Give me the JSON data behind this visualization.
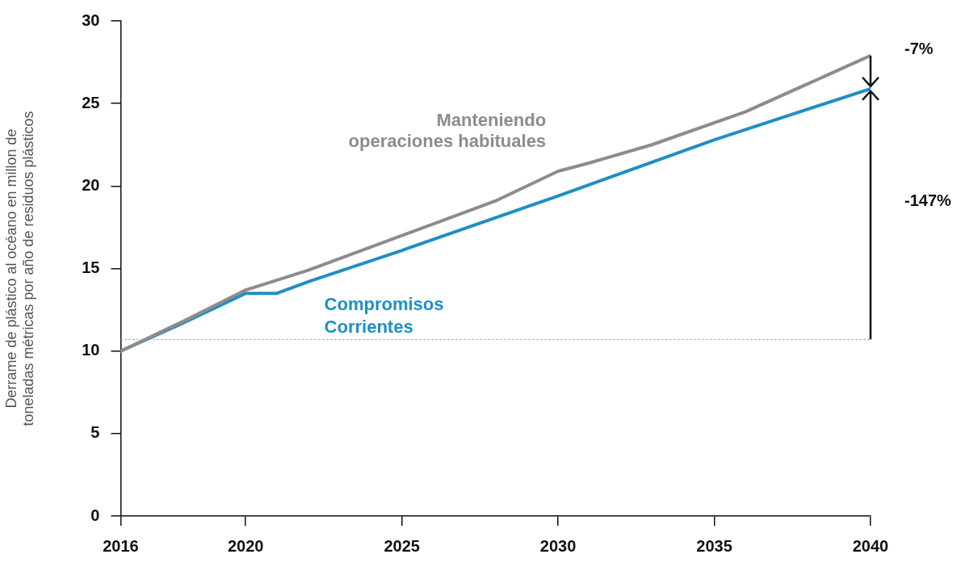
{
  "chart_data": {
    "type": "line",
    "ylabel": "Derrame de plástico al océano en millon de toneladas métricas por año de residuos plásticos",
    "xlim": [
      2016,
      2040
    ],
    "xticks": [
      2016,
      2020,
      2025,
      2030,
      2035,
      2040
    ],
    "ylim": [
      0,
      30
    ],
    "yticks": [
      0,
      5,
      10,
      15,
      20,
      25,
      30
    ],
    "grid": false,
    "legend": false,
    "marker": "none",
    "line_style": "solid",
    "series": [
      {
        "name": "Manteniendo operaciones habituales",
        "color": "#8c8c8c",
        "x": [
          2016,
          2018,
          2020,
          2022,
          2025,
          2028,
          2030,
          2031,
          2033,
          2036,
          2038,
          2040
        ],
        "values": [
          10,
          11.8,
          13.7,
          14.9,
          17.0,
          19.1,
          20.9,
          21.4,
          22.5,
          24.5,
          26.2,
          27.9
        ]
      },
      {
        "name": "Compromisos Corrientes",
        "color": "#1f8fc4",
        "x": [
          2016,
          2018,
          2020,
          2021,
          2022,
          2025,
          2030,
          2035,
          2040
        ],
        "values": [
          10,
          11.7,
          13.5,
          13.5,
          14.2,
          16.1,
          19.4,
          22.8,
          25.9
        ]
      }
    ],
    "ref_lines": [
      {
        "axis": "y",
        "value": 10.7,
        "color": "#888888",
        "line_style": "dotted"
      }
    ],
    "annotations": [
      "-7%",
      "-147%"
    ]
  }
}
